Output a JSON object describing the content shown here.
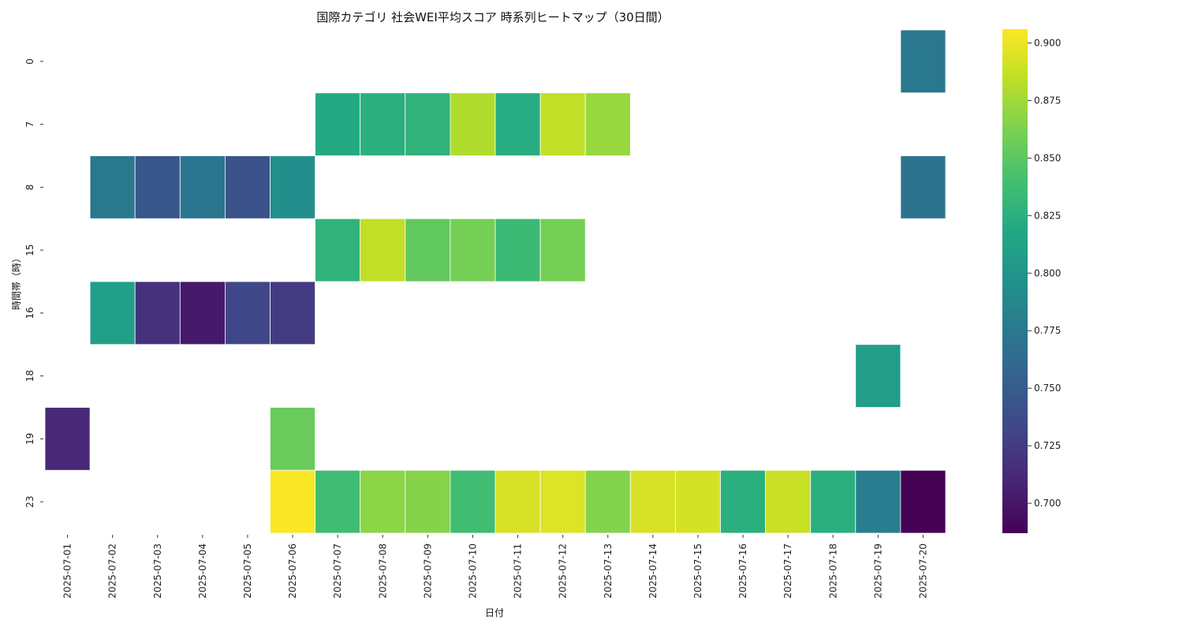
{
  "chart_data": {
    "type": "heatmap",
    "title": "国際カテゴリ 社会WEI平均スコア 時系列ヒートマップ（30日間）",
    "xlabel": "日付",
    "ylabel": "時間帯（時）",
    "x": [
      "2025-07-01",
      "2025-07-02",
      "2025-07-03",
      "2025-07-04",
      "2025-07-05",
      "2025-07-06",
      "2025-07-07",
      "2025-07-08",
      "2025-07-09",
      "2025-07-10",
      "2025-07-11",
      "2025-07-12",
      "2025-07-13",
      "2025-07-14",
      "2025-07-15",
      "2025-07-16",
      "2025-07-17",
      "2025-07-18",
      "2025-07-19",
      "2025-07-20"
    ],
    "y": [
      "0",
      "7",
      "8",
      "15",
      "16",
      "18",
      "19",
      "23"
    ],
    "colormap": "viridis",
    "vmin": 0.687,
    "vmax": 0.906,
    "colorbar_ticks": [
      "0.700",
      "0.725",
      "0.750",
      "0.775",
      "0.800",
      "0.825",
      "0.850",
      "0.875",
      "0.900"
    ],
    "colorbar_tick_values": [
      0.7,
      0.725,
      0.75,
      0.775,
      0.8,
      0.825,
      0.85,
      0.875,
      0.9
    ],
    "values": [
      [
        null,
        null,
        null,
        null,
        null,
        null,
        null,
        null,
        null,
        null,
        null,
        null,
        null,
        null,
        null,
        null,
        null,
        null,
        null,
        0.775
      ],
      [
        null,
        null,
        null,
        null,
        null,
        null,
        0.82,
        0.825,
        0.828,
        0.88,
        0.822,
        0.885,
        0.872,
        null,
        null,
        null,
        null,
        null,
        null,
        null
      ],
      [
        null,
        0.775,
        0.745,
        0.772,
        0.742,
        0.795,
        null,
        null,
        null,
        null,
        null,
        null,
        null,
        null,
        null,
        null,
        null,
        null,
        null,
        0.77
      ],
      [
        null,
        null,
        null,
        null,
        null,
        null,
        0.828,
        0.885,
        0.852,
        0.86,
        0.835,
        0.86,
        null,
        null,
        null,
        null,
        null,
        null,
        null,
        null
      ],
      [
        null,
        0.81,
        0.718,
        0.702,
        0.733,
        0.725,
        null,
        null,
        null,
        null,
        null,
        null,
        null,
        null,
        null,
        null,
        null,
        null,
        null,
        null
      ],
      [
        null,
        null,
        null,
        null,
        null,
        null,
        null,
        null,
        null,
        null,
        null,
        null,
        null,
        null,
        null,
        null,
        null,
        null,
        0.808,
        null
      ],
      [
        0.712,
        null,
        null,
        null,
        null,
        0.855,
        null,
        null,
        null,
        null,
        null,
        null,
        null,
        null,
        null,
        null,
        null,
        null,
        null,
        null
      ],
      [
        null,
        null,
        null,
        null,
        null,
        0.905,
        0.838,
        0.868,
        0.866,
        0.838,
        0.893,
        0.895,
        0.865,
        0.893,
        0.892,
        0.825,
        0.888,
        0.825,
        0.78,
        0.687
      ]
    ]
  }
}
